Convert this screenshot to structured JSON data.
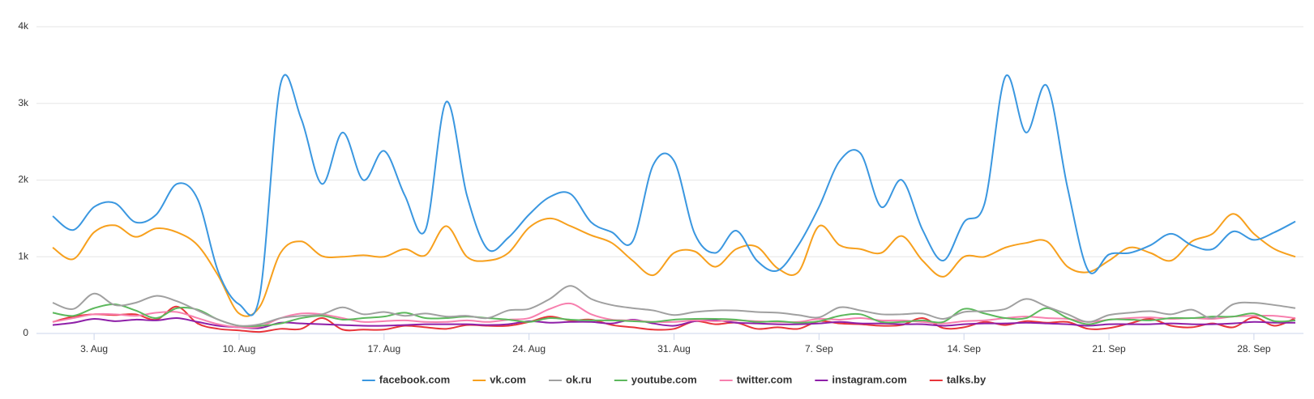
{
  "chart_data": {
    "type": "line",
    "categories": [
      null,
      null,
      "3. Aug",
      null,
      null,
      null,
      null,
      null,
      null,
      "10. Aug",
      null,
      null,
      null,
      null,
      null,
      null,
      "17. Aug",
      null,
      null,
      null,
      null,
      null,
      null,
      "24. Aug",
      null,
      null,
      null,
      null,
      null,
      null,
      "31. Aug",
      null,
      null,
      null,
      null,
      null,
      null,
      "7. Sep",
      null,
      null,
      null,
      null,
      null,
      null,
      "14. Sep",
      null,
      null,
      null,
      null,
      null,
      null,
      "21. Sep",
      null,
      null,
      null,
      null,
      null,
      null,
      "28. Sep",
      null,
      null
    ],
    "ylim": [
      0,
      4000
    ],
    "yticks": [
      0,
      {
        "value": 1000,
        "label": "1k"
      },
      {
        "value": 2000,
        "label": "2k"
      },
      {
        "value": 3000,
        "label": "3k"
      },
      {
        "value": 4000,
        "label": "4k"
      }
    ],
    "grid": true,
    "legend": "bottom",
    "series": [
      {
        "name": "facebook.com",
        "color": "#3a97e0",
        "values": [
          1530,
          1350,
          1650,
          1700,
          1450,
          1550,
          1950,
          1750,
          800,
          380,
          500,
          3250,
          2800,
          1950,
          2620,
          2000,
          2380,
          1800,
          1350,
          3020,
          1800,
          1100,
          1250,
          1550,
          1780,
          1820,
          1450,
          1320,
          1200,
          2200,
          2250,
          1300,
          1050,
          1340,
          950,
          820,
          1150,
          1650,
          2250,
          2350,
          1650,
          2000,
          1350,
          950,
          1450,
          1700,
          3350,
          2620,
          3230,
          1900,
          820,
          1030,
          1050,
          1150,
          1300,
          1150,
          1100,
          1330,
          1220,
          1320,
          1460
        ]
      },
      {
        "name": "vk.com",
        "color": "#f7a01d",
        "values": [
          1120,
          970,
          1320,
          1410,
          1260,
          1370,
          1320,
          1150,
          750,
          260,
          350,
          1050,
          1200,
          1010,
          1000,
          1020,
          1000,
          1100,
          1020,
          1400,
          1000,
          950,
          1050,
          1380,
          1500,
          1400,
          1280,
          1180,
          950,
          760,
          1050,
          1070,
          870,
          1100,
          1130,
          850,
          800,
          1400,
          1150,
          1100,
          1050,
          1270,
          950,
          740,
          1000,
          1000,
          1120,
          1180,
          1200,
          870,
          800,
          950,
          1120,
          1050,
          950,
          1200,
          1300,
          1560,
          1300,
          1100,
          1000
        ]
      },
      {
        "name": "ok.ru",
        "color": "#a0a0a0",
        "values": [
          400,
          320,
          520,
          370,
          400,
          490,
          420,
          300,
          180,
          100,
          120,
          200,
          230,
          250,
          340,
          250,
          280,
          230,
          260,
          220,
          230,
          200,
          300,
          320,
          450,
          620,
          450,
          370,
          330,
          300,
          240,
          280,
          300,
          300,
          280,
          270,
          240,
          210,
          340,
          300,
          250,
          250,
          260,
          190,
          280,
          290,
          320,
          450,
          350,
          250,
          150,
          240,
          270,
          290,
          250,
          310,
          200,
          380,
          400,
          370,
          330
        ]
      },
      {
        "name": "youtube.com",
        "color": "#5cb85c",
        "values": [
          270,
          230,
          330,
          380,
          300,
          200,
          330,
          310,
          180,
          100,
          100,
          130,
          200,
          230,
          180,
          200,
          220,
          270,
          200,
          200,
          220,
          200,
          180,
          150,
          200,
          180,
          170,
          170,
          160,
          150,
          180,
          190,
          190,
          180,
          150,
          160,
          140,
          160,
          230,
          250,
          150,
          150,
          170,
          150,
          320,
          260,
          200,
          200,
          330,
          200,
          120,
          180,
          180,
          170,
          200,
          200,
          220,
          220,
          260,
          160,
          170
        ]
      },
      {
        "name": "twitter.com",
        "color": "#f77fae",
        "values": [
          150,
          200,
          250,
          250,
          230,
          270,
          280,
          200,
          120,
          80,
          90,
          200,
          260,
          250,
          200,
          150,
          160,
          170,
          150,
          150,
          170,
          150,
          180,
          200,
          320,
          390,
          250,
          180,
          170,
          150,
          150,
          170,
          160,
          170,
          160,
          150,
          150,
          190,
          180,
          200,
          170,
          170,
          150,
          130,
          160,
          170,
          200,
          220,
          200,
          190,
          150,
          180,
          200,
          210,
          190,
          200,
          190,
          220,
          230,
          230,
          200
        ]
      },
      {
        "name": "instagram.com",
        "color": "#8e1fa8",
        "values": [
          110,
          140,
          190,
          160,
          180,
          170,
          200,
          150,
          100,
          80,
          70,
          140,
          130,
          120,
          110,
          100,
          100,
          110,
          120,
          120,
          120,
          110,
          120,
          160,
          140,
          150,
          150,
          130,
          180,
          130,
          100,
          160,
          170,
          140,
          130,
          120,
          120,
          130,
          150,
          130,
          130,
          120,
          120,
          100,
          120,
          130,
          130,
          140,
          130,
          120,
          100,
          120,
          120,
          120,
          130,
          120,
          120,
          130,
          150,
          140,
          140
        ]
      },
      {
        "name": "talks.by",
        "color": "#e8343a",
        "values": [
          150,
          220,
          250,
          240,
          250,
          180,
          350,
          130,
          60,
          40,
          20,
          60,
          60,
          200,
          50,
          50,
          50,
          100,
          80,
          60,
          110,
          100,
          100,
          150,
          220,
          170,
          180,
          110,
          80,
          50,
          60,
          160,
          120,
          140,
          60,
          80,
          60,
          160,
          130,
          120,
          100,
          110,
          200,
          70,
          80,
          150,
          110,
          160,
          140,
          150,
          60,
          70,
          130,
          190,
          100,
          80,
          130,
          80,
          210,
          100,
          200
        ]
      }
    ]
  }
}
